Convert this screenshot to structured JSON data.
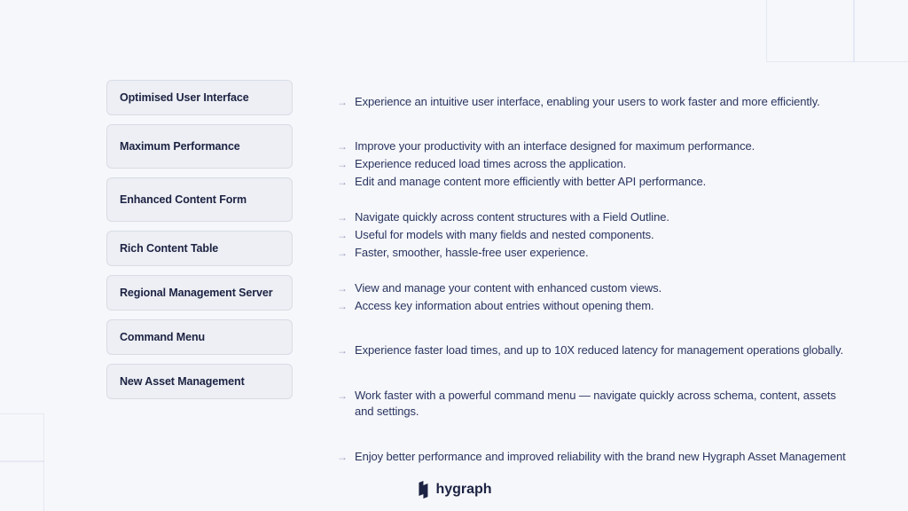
{
  "colors": {
    "background": "#f6f7fa",
    "pill_bg": "#edeff4",
    "pill_border": "#d8dce5",
    "heading_text": "#1c2242",
    "body_text": "#2a3561",
    "arrow": "#9aa3c4",
    "grid_line": "#d6dcf0"
  },
  "features": [
    {
      "label": "Optimised User Interface",
      "tall": false,
      "bullets": [
        "Experience an intuitive user interface, enabling your users to work faster and more efficiently."
      ],
      "block_height": 50
    },
    {
      "label": "Maximum Performance",
      "tall": true,
      "bullets": [
        "Improve your productivity with an interface designed for maximum performance.",
        "Experience reduced load times across the application.",
        "Edit and manage content more efficiently with better API performance."
      ],
      "block_height": 70
    },
    {
      "label": "Enhanced Content Form",
      "tall": true,
      "bullets": [
        "Navigate quickly across content structures with a Field Outline.",
        "Useful for models with many fields and nested components.",
        "Faster, smoother, hassle-free user experience."
      ],
      "block_height": 70
    },
    {
      "label": "Rich Content Table",
      "tall": false,
      "bullets": [
        "View and manage your content with enhanced custom views.",
        "Access key information about entries without opening them."
      ],
      "block_height": 50
    },
    {
      "label": "Regional Management Server",
      "tall": false,
      "bullets": [
        "Experience faster load times, and up to 10X reduced latency for management operations globally."
      ],
      "block_height": 50
    },
    {
      "label": "Command Menu",
      "tall": false,
      "bullets": [
        "Work faster with a powerful command menu — navigate quickly across schema, content, assets and settings."
      ],
      "block_height": 50
    },
    {
      "label": "New Asset Management",
      "tall": false,
      "bullets": [
        "Enjoy better performance and improved reliability with the brand new Hygraph Asset Management"
      ],
      "block_height": 50
    }
  ],
  "logo_text": "hygraph"
}
